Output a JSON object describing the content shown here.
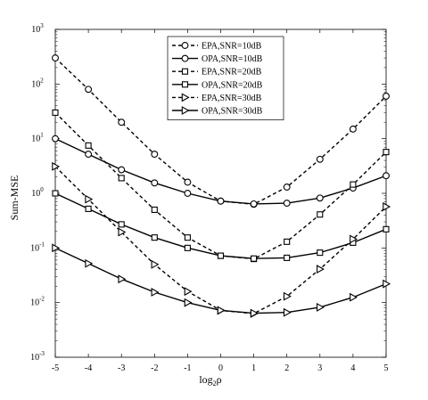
{
  "chart_data": {
    "type": "line",
    "title": "",
    "xlabel": "log",
    "xlabel_sub": "2",
    "xlabel_var": "ρ",
    "ylabel": "Sum-MSE",
    "y_scale": "log",
    "xlim": [
      -5,
      5
    ],
    "ylim": [
      0.001,
      1000
    ],
    "x_ticks": [
      "-5",
      "-4",
      "-3",
      "-2",
      "-1",
      "0",
      "1",
      "2",
      "3",
      "4",
      "5"
    ],
    "y_ticks": [
      {
        "base": "10",
        "exp": "-3",
        "value": 0.001
      },
      {
        "base": "10",
        "exp": "-2",
        "value": 0.01
      },
      {
        "base": "10",
        "exp": "-1",
        "value": 0.1
      },
      {
        "base": "10",
        "exp": "0",
        "value": 1
      },
      {
        "base": "10",
        "exp": "1",
        "value": 10
      },
      {
        "base": "10",
        "exp": "2",
        "value": 100
      },
      {
        "base": "10",
        "exp": "3",
        "value": 1000
      }
    ],
    "grid": false,
    "legend_position": "top-right",
    "x": [
      -5,
      -4,
      -3,
      -2,
      -1,
      0,
      1,
      2,
      3,
      4,
      5
    ],
    "series": [
      {
        "name": "EPA,SNR=10dB",
        "marker": "circle",
        "dash": true,
        "values": [
          300,
          80,
          20,
          5.2,
          1.6,
          0.72,
          0.63,
          1.3,
          4.2,
          15,
          60
        ]
      },
      {
        "name": "OPA,SNR=10dB",
        "marker": "circle",
        "dash": false,
        "values": [
          10,
          5.2,
          2.7,
          1.55,
          1.0,
          0.72,
          0.64,
          0.66,
          0.82,
          1.25,
          2.1
        ]
      },
      {
        "name": "EPA,SNR=20dB",
        "marker": "square",
        "dash": true,
        "values": [
          30,
          7.5,
          1.9,
          0.5,
          0.155,
          0.072,
          0.063,
          0.13,
          0.41,
          1.45,
          5.7
        ]
      },
      {
        "name": "OPA,SNR=20dB",
        "marker": "square",
        "dash": false,
        "values": [
          1.0,
          0.52,
          0.27,
          0.155,
          0.1,
          0.072,
          0.064,
          0.066,
          0.082,
          0.125,
          0.22
        ]
      },
      {
        "name": "EPA,SNR=30dB",
        "marker": "triangle-right",
        "dash": true,
        "values": [
          3.1,
          0.78,
          0.195,
          0.05,
          0.016,
          0.0072,
          0.0063,
          0.013,
          0.041,
          0.145,
          0.57
        ]
      },
      {
        "name": "OPA,SNR=30dB",
        "marker": "triangle-right",
        "dash": false,
        "values": [
          0.1,
          0.052,
          0.027,
          0.0155,
          0.01,
          0.0072,
          0.0064,
          0.0066,
          0.0082,
          0.0125,
          0.022
        ]
      }
    ]
  }
}
